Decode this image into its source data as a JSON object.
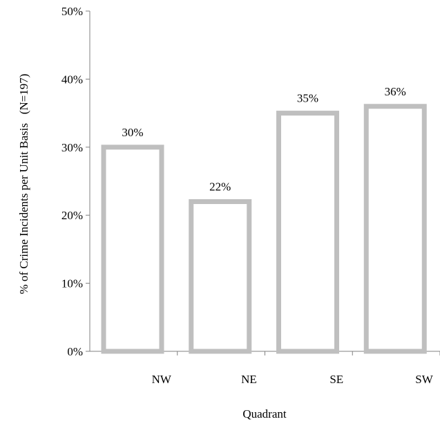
{
  "chart_data": {
    "type": "bar",
    "categories": [
      "NW",
      "NE",
      "SE",
      "SW"
    ],
    "values": [
      0.3,
      0.22,
      0.35,
      0.36
    ],
    "data_labels": [
      "30%",
      "22%",
      "35%",
      "36%"
    ],
    "title": "",
    "xlabel": "Quadrant",
    "ylabel": "% of Crime Incidents per Unit Basis   (N=197)",
    "ylim": [
      0,
      0.5
    ],
    "y_ticks": [
      0,
      0.1,
      0.2,
      0.3,
      0.4,
      0.5
    ],
    "y_tick_labels": [
      "0%",
      "10%",
      "20%",
      "30%",
      "40%",
      "50%"
    ],
    "grid": false,
    "legend": "none",
    "colors": {
      "bar_outline": "#bfbfbf",
      "bar_fill": "#ffffff",
      "axis": "#808080"
    }
  }
}
